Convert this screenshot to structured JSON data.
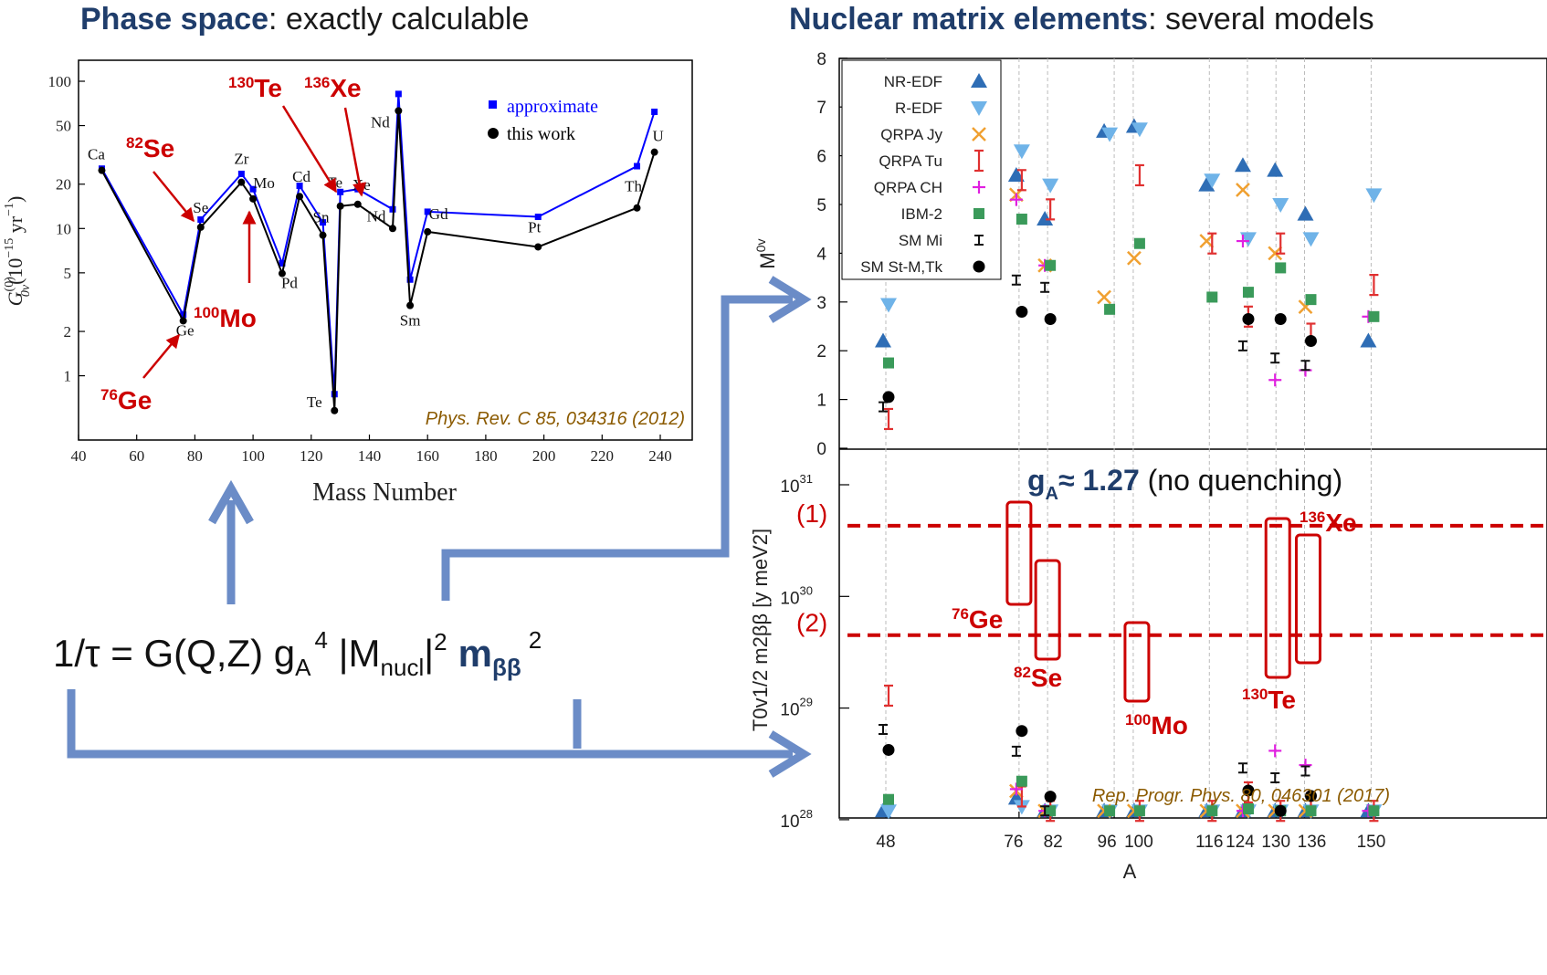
{
  "titles": {
    "left_highlight": "Phase space",
    "left_rest": ": exactly calculable",
    "right_highlight": "Nuclear matrix elements",
    "right_rest": ": several models"
  },
  "formula": {
    "prefix": "1/τ = G(Q,Z) g",
    "ga_sub": "A",
    "ga_sup": "4",
    "mid": " |M",
    "m_sub": "nucl",
    "m_bar": "|",
    "m_sup": "2",
    "mbb": "m",
    "mbb_sub": "ββ",
    "mbb_sup": "2"
  },
  "colors": {
    "blue_series": "#0000ff",
    "black_series": "#000000",
    "red_annot": "#cc0000",
    "arrow": "#6b8cc7",
    "ref_text": "#8b5a00",
    "title_blue": "#1f3d6b"
  },
  "chart_data": [
    {
      "type": "line",
      "xlabel": "Mass Number",
      "ylabel": "G0ν(0) (10^-15 yr^-1)",
      "y_scale": "log",
      "xlim": [
        40,
        250
      ],
      "ylim": [
        0.5,
        110
      ],
      "xticks": [
        "40",
        "60",
        "80",
        "100",
        "120",
        "140",
        "160",
        "180",
        "200",
        "220",
        "240"
      ],
      "yticks": [
        "1",
        "2",
        "5",
        "10",
        "20",
        "50",
        "100"
      ],
      "legend_position": "top-right",
      "reference": "Phys. Rev. C 85, 034316 (2012)",
      "series": [
        {
          "name": "approximate",
          "marker": "square",
          "color": "#0000ff",
          "x": [
            48,
            76,
            82,
            96,
            100,
            110,
            116,
            124,
            128,
            130,
            136,
            148,
            150,
            154,
            160,
            198,
            232,
            238
          ],
          "y": [
            25.5,
            2.6,
            11.5,
            23.5,
            18.5,
            5.8,
            19.5,
            11.0,
            0.75,
            17.7,
            18.5,
            13.5,
            82,
            4.5,
            13.0,
            12.0,
            26.5,
            62
          ]
        },
        {
          "name": "this work",
          "marker": "circle",
          "color": "#000000",
          "x": [
            48,
            76,
            82,
            96,
            100,
            110,
            116,
            124,
            128,
            130,
            136,
            148,
            150,
            154,
            160,
            198,
            232,
            238
          ],
          "y": [
            24.8,
            2.36,
            10.2,
            20.6,
            15.9,
            4.95,
            16.5,
            9.0,
            0.58,
            14.2,
            14.6,
            10.0,
            63,
            3.0,
            9.5,
            7.5,
            13.8,
            33
          ]
        }
      ],
      "point_labels": [
        "Ca",
        "Ge",
        "Se",
        "Zr",
        "Mo",
        "Pd",
        "Cd",
        "Sn",
        "Te",
        "Te",
        "Xe",
        "Nd",
        "Nd",
        "Sm",
        "Gd",
        "Pt",
        "Th",
        "U"
      ],
      "annotations": [
        {
          "sup": "82",
          "label": "Se"
        },
        {
          "sup": "130",
          "label": "Te"
        },
        {
          "sup": "136",
          "label": "Xe"
        },
        {
          "sup": "100",
          "label": "Mo"
        },
        {
          "sup": "76",
          "label": "Ge"
        }
      ]
    },
    {
      "type": "scatter",
      "xlabel": "A",
      "ylabel": "M0v",
      "ylim": [
        0,
        8
      ],
      "yticks": [
        "0",
        "1",
        "2",
        "3",
        "4",
        "5",
        "6",
        "7",
        "8"
      ],
      "x_categories": [
        "48",
        "76",
        "82",
        "96",
        "100",
        "116",
        "124",
        "130",
        "136",
        "150"
      ],
      "legend_position": "top-left",
      "legend": [
        "NR-EDF",
        "R-EDF",
        "QRPA Jy",
        "QRPA Tu",
        "QRPA CH",
        "IBM-2",
        "SM Mi",
        "SM St-M,Tk"
      ],
      "series": [
        {
          "name": "NR-EDF",
          "x": [
            48,
            76,
            82,
            96,
            100,
            116,
            124,
            130,
            136,
            150
          ],
          "y": [
            2.2,
            5.6,
            4.7,
            6.5,
            6.6,
            5.4,
            5.8,
            5.7,
            4.8,
            2.2
          ]
        },
        {
          "name": "R-EDF",
          "x": [
            48,
            76,
            82,
            96,
            100,
            116,
            124,
            130,
            136,
            150
          ],
          "y": [
            2.95,
            6.1,
            5.4,
            6.45,
            6.55,
            5.5,
            4.3,
            5.0,
            4.3,
            5.2
          ]
        },
        {
          "name": "QRPA Jy",
          "x": [
            76,
            82,
            96,
            100,
            116,
            124,
            130,
            136
          ],
          "y": [
            5.2,
            3.75,
            3.1,
            3.9,
            4.25,
            5.3,
            4.0,
            2.9
          ]
        },
        {
          "name": "QRPA Tu",
          "x": [
            48,
            76,
            82,
            100,
            116,
            124,
            130,
            136,
            150
          ],
          "y": [
            0.6,
            5.5,
            4.9,
            5.6,
            4.2,
            2.7,
            4.2,
            2.35,
            3.35
          ]
        },
        {
          "name": "QRPA CH",
          "x": [
            76,
            82,
            124,
            130,
            136,
            150
          ],
          "y": [
            5.1,
            3.75,
            4.25,
            1.4,
            1.6,
            2.7
          ]
        },
        {
          "name": "IBM-2",
          "x": [
            48,
            76,
            82,
            96,
            100,
            116,
            124,
            130,
            136,
            150
          ],
          "y": [
            1.75,
            4.7,
            3.75,
            2.85,
            4.2,
            3.1,
            3.2,
            3.7,
            3.05,
            2.7
          ]
        },
        {
          "name": "SM Mi",
          "x": [
            48,
            76,
            82,
            124,
            130,
            136
          ],
          "y": [
            0.85,
            3.45,
            3.3,
            2.1,
            1.85,
            1.7
          ]
        },
        {
          "name": "SM St-M,Tk",
          "x": [
            48,
            76,
            82,
            124,
            130,
            136
          ],
          "y": [
            1.05,
            2.8,
            2.65,
            2.65,
            2.65,
            2.2
          ]
        }
      ]
    },
    {
      "type": "scatter",
      "xlabel": "A",
      "ylabel": "T0v1/2 m2ββ [y meV2]",
      "y_scale": "log",
      "ylim": [
        1e+28,
        2e+31
      ],
      "ytick_base": "10",
      "ytick_exps": [
        "28",
        "29",
        "30",
        "31"
      ],
      "x_categories": [
        "48",
        "76",
        "82",
        "96",
        "100",
        "116",
        "124",
        "130",
        "136",
        "150"
      ],
      "annotation_text": {
        "g": "g",
        "sub": "A",
        "approx": "≈ 1.27",
        "rest": " (no quenching)"
      },
      "reference": "Rep. Progr.  Phys. 80, 046301 (2017)",
      "limit_lines": [
        {
          "label": "(1)",
          "value": 4.3e+30
        },
        {
          "label": "(2)",
          "value": 4.5e+29
        }
      ],
      "boxed_isotopes": [
        {
          "sup": "76",
          "label": "Ge"
        },
        {
          "sup": "82",
          "label": "Se"
        },
        {
          "sup": "100",
          "label": "Mo"
        },
        {
          "sup": "130",
          "label": "Te"
        },
        {
          "sup": "136",
          "label": "Xe"
        }
      ]
    }
  ]
}
